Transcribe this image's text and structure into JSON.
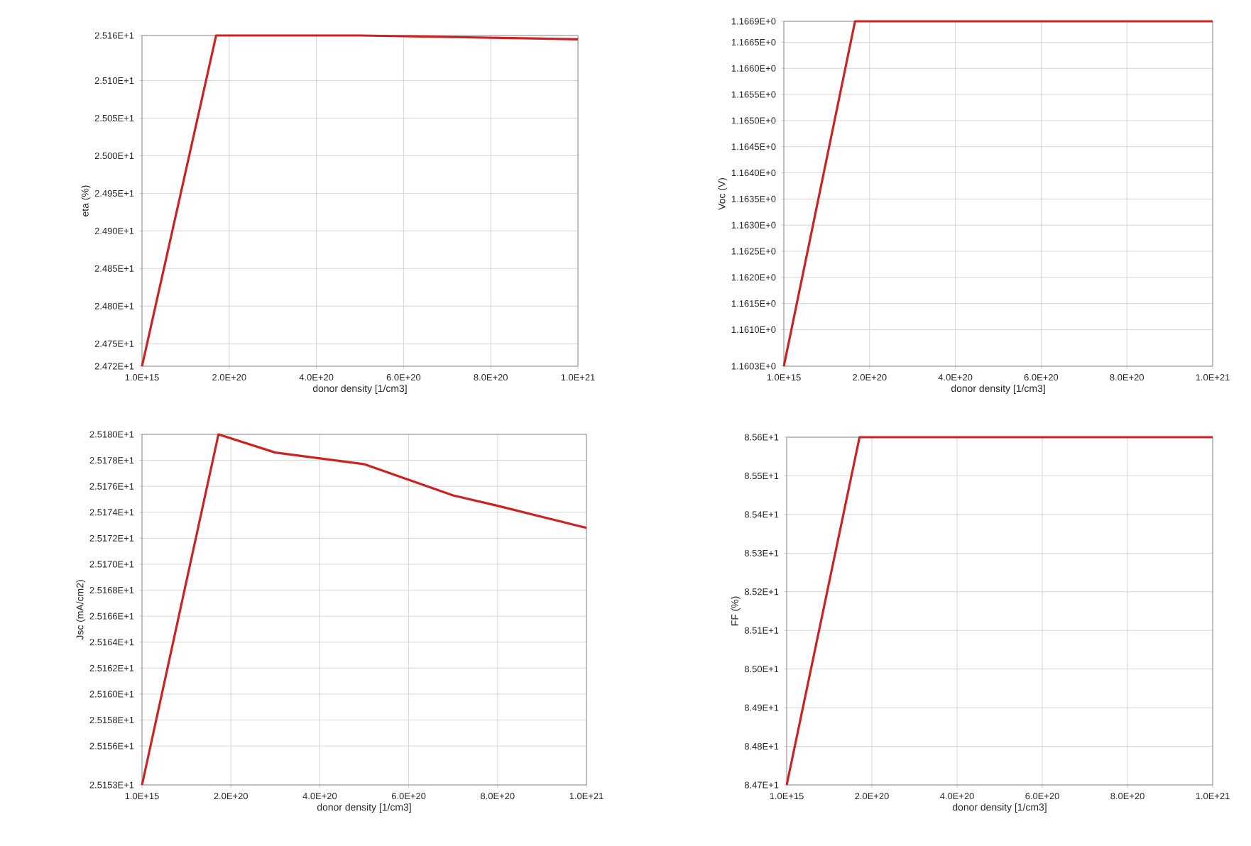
{
  "chart_data": [
    {
      "type": "line",
      "xlabel": "donor density [1/cm3]",
      "ylabel": "eta (%)",
      "grid": true,
      "xlim": [
        1000000000000000.0,
        1e+21
      ],
      "ylim": [
        24.72,
        25.16
      ],
      "xticks": [
        {
          "value": 1000000000000000.0,
          "label": "1.0E+15"
        },
        {
          "value": 2e+20,
          "label": "2.0E+20"
        },
        {
          "value": 4e+20,
          "label": "4.0E+20"
        },
        {
          "value": 6e+20,
          "label": "6.0E+20"
        },
        {
          "value": 8e+20,
          "label": "8.0E+20"
        },
        {
          "value": 1e+21,
          "label": "1.0E+21"
        }
      ],
      "yticks": [
        {
          "value": 24.72,
          "label": "2.472E+1"
        },
        {
          "value": 24.75,
          "label": "2.475E+1"
        },
        {
          "value": 24.8,
          "label": "2.480E+1"
        },
        {
          "value": 24.85,
          "label": "2.485E+1"
        },
        {
          "value": 24.9,
          "label": "2.490E+1"
        },
        {
          "value": 24.95,
          "label": "2.495E+1"
        },
        {
          "value": 25.0,
          "label": "2.500E+1"
        },
        {
          "value": 25.05,
          "label": "2.505E+1"
        },
        {
          "value": 25.1,
          "label": "2.510E+1"
        },
        {
          "value": 25.16,
          "label": "2.516E+1"
        }
      ],
      "series": [
        {
          "color": "#cc2222",
          "x": [
            1000000000000000.0,
            1.7e+20,
            5e+20,
            1e+21
          ],
          "values": [
            24.72,
            25.16,
            25.16,
            25.155
          ]
        }
      ]
    },
    {
      "type": "line",
      "xlabel": "donor density [1/cm3]",
      "ylabel": "Voc (V)",
      "grid": true,
      "xlim": [
        1000000000000000.0,
        1e+21
      ],
      "ylim": [
        1.1603,
        1.1669
      ],
      "xticks": [
        {
          "value": 1000000000000000.0,
          "label": "1.0E+15"
        },
        {
          "value": 2e+20,
          "label": "2.0E+20"
        },
        {
          "value": 4e+20,
          "label": "4.0E+20"
        },
        {
          "value": 6e+20,
          "label": "6.0E+20"
        },
        {
          "value": 8e+20,
          "label": "8.0E+20"
        },
        {
          "value": 1e+21,
          "label": "1.0E+21"
        }
      ],
      "yticks": [
        {
          "value": 1.1603,
          "label": "1.1603E+0"
        },
        {
          "value": 1.161,
          "label": "1.1610E+0"
        },
        {
          "value": 1.1615,
          "label": "1.1615E+0"
        },
        {
          "value": 1.162,
          "label": "1.1620E+0"
        },
        {
          "value": 1.1625,
          "label": "1.1625E+0"
        },
        {
          "value": 1.163,
          "label": "1.1630E+0"
        },
        {
          "value": 1.1635,
          "label": "1.1635E+0"
        },
        {
          "value": 1.164,
          "label": "1.1640E+0"
        },
        {
          "value": 1.1645,
          "label": "1.1645E+0"
        },
        {
          "value": 1.165,
          "label": "1.1650E+0"
        },
        {
          "value": 1.1655,
          "label": "1.1655E+0"
        },
        {
          "value": 1.166,
          "label": "1.1660E+0"
        },
        {
          "value": 1.1665,
          "label": "1.1665E+0"
        },
        {
          "value": 1.1669,
          "label": "1.1669E+0"
        }
      ],
      "series": [
        {
          "color": "#cc2222",
          "x": [
            1000000000000000.0,
            1.66e+20,
            1e+21
          ],
          "values": [
            1.1603,
            1.1669,
            1.1669
          ]
        }
      ]
    },
    {
      "type": "line",
      "xlabel": "donor density [1/cm3]",
      "ylabel": "Jsc (mA/cm2)",
      "grid": true,
      "xlim": [
        1000000000000000.0,
        1e+21
      ],
      "ylim": [
        25.153,
        25.18
      ],
      "xticks": [
        {
          "value": 1000000000000000.0,
          "label": "1.0E+15"
        },
        {
          "value": 2e+20,
          "label": "2.0E+20"
        },
        {
          "value": 4e+20,
          "label": "4.0E+20"
        },
        {
          "value": 6e+20,
          "label": "6.0E+20"
        },
        {
          "value": 8e+20,
          "label": "8.0E+20"
        },
        {
          "value": 1e+21,
          "label": "1.0E+21"
        }
      ],
      "yticks": [
        {
          "value": 25.153,
          "label": "2.5153E+1"
        },
        {
          "value": 25.156,
          "label": "2.5156E+1"
        },
        {
          "value": 25.158,
          "label": "2.5158E+1"
        },
        {
          "value": 25.16,
          "label": "2.5160E+1"
        },
        {
          "value": 25.162,
          "label": "2.5162E+1"
        },
        {
          "value": 25.164,
          "label": "2.5164E+1"
        },
        {
          "value": 25.166,
          "label": "2.5166E+1"
        },
        {
          "value": 25.168,
          "label": "2.5168E+1"
        },
        {
          "value": 25.17,
          "label": "2.5170E+1"
        },
        {
          "value": 25.172,
          "label": "2.5172E+1"
        },
        {
          "value": 25.174,
          "label": "2.5174E+1"
        },
        {
          "value": 25.176,
          "label": "2.5176E+1"
        },
        {
          "value": 25.178,
          "label": "2.5178E+1"
        },
        {
          "value": 25.18,
          "label": "2.5180E+1"
        }
      ],
      "series": [
        {
          "color": "#cc2222",
          "x": [
            1000000000000000.0,
            1.72e+20,
            3e+20,
            5e+20,
            7e+20,
            8e+20,
            1e+21
          ],
          "values": [
            25.153,
            25.18,
            25.1786,
            25.1777,
            25.1753,
            25.1745,
            25.1728
          ]
        }
      ]
    },
    {
      "type": "line",
      "xlabel": "donor density [1/cm3]",
      "ylabel": "FF (%)",
      "grid": true,
      "xlim": [
        1000000000000000.0,
        1e+21
      ],
      "ylim": [
        84.7,
        85.6
      ],
      "xticks": [
        {
          "value": 1000000000000000.0,
          "label": "1.0E+15"
        },
        {
          "value": 2e+20,
          "label": "2.0E+20"
        },
        {
          "value": 4e+20,
          "label": "4.0E+20"
        },
        {
          "value": 6e+20,
          "label": "6.0E+20"
        },
        {
          "value": 8e+20,
          "label": "8.0E+20"
        },
        {
          "value": 1e+21,
          "label": "1.0E+21"
        }
      ],
      "yticks": [
        {
          "value": 84.7,
          "label": "8.47E+1"
        },
        {
          "value": 84.8,
          "label": "8.48E+1"
        },
        {
          "value": 84.9,
          "label": "8.49E+1"
        },
        {
          "value": 85.0,
          "label": "8.50E+1"
        },
        {
          "value": 85.1,
          "label": "8.51E+1"
        },
        {
          "value": 85.2,
          "label": "8.52E+1"
        },
        {
          "value": 85.3,
          "label": "8.53E+1"
        },
        {
          "value": 85.4,
          "label": "8.54E+1"
        },
        {
          "value": 85.5,
          "label": "8.55E+1"
        },
        {
          "value": 85.6,
          "label": "8.56E+1"
        }
      ],
      "series": [
        {
          "color": "#cc2222",
          "x": [
            1000000000000000.0,
            1.71e+20,
            1e+21
          ],
          "values": [
            84.7,
            85.6,
            85.6
          ]
        }
      ]
    }
  ]
}
